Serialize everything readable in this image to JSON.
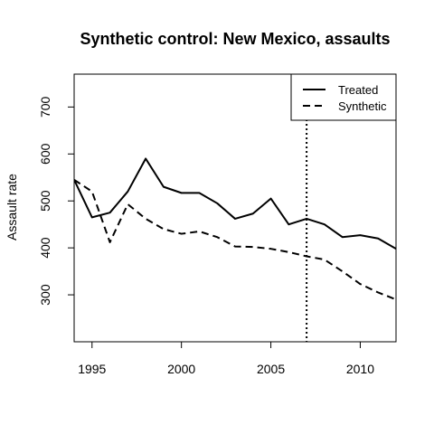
{
  "chart_data": {
    "type": "line",
    "title": "Synthetic control: New Mexico, assaults",
    "xlabel": "",
    "ylabel": "Assault rate",
    "xlim": [
      1994,
      2012
    ],
    "ylim": [
      200,
      770
    ],
    "x_ticks": [
      1995,
      2000,
      2005,
      2010
    ],
    "y_ticks": [
      300,
      400,
      500,
      600,
      700
    ],
    "grid": false,
    "legend_position": "top-right",
    "x": [
      1994,
      1995,
      1996,
      1997,
      1998,
      1999,
      2000,
      2001,
      2002,
      2003,
      2004,
      2005,
      2006,
      2007,
      2008,
      2009,
      2010,
      2011,
      2012
    ],
    "series": [
      {
        "name": "Treated",
        "style": "solid",
        "color": "#000000",
        "values": [
          545,
          465,
          475,
          520,
          590,
          530,
          517,
          517,
          495,
          462,
          473,
          505,
          450,
          462,
          450,
          423,
          427,
          420,
          398
        ]
      },
      {
        "name": "Synthetic",
        "style": "dashed",
        "color": "#000000",
        "values": [
          545,
          520,
          412,
          493,
          462,
          440,
          430,
          435,
          423,
          403,
          402,
          398,
          391,
          382,
          375,
          350,
          323,
          305,
          290
        ]
      }
    ],
    "vline": {
      "x": 2007,
      "style": "dotted"
    }
  }
}
